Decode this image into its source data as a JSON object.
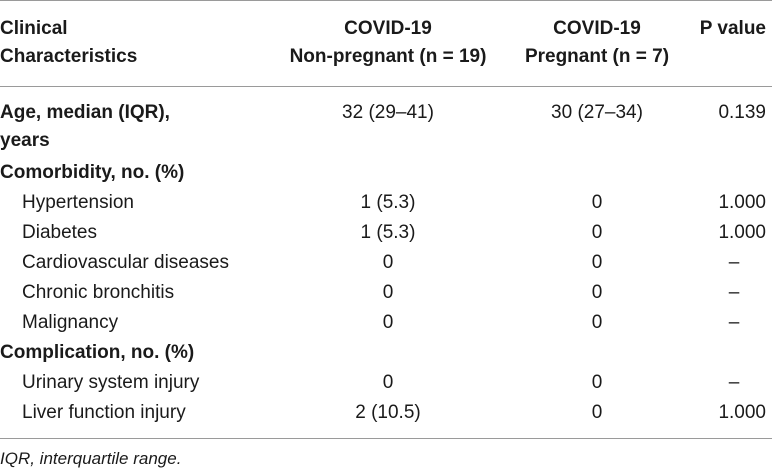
{
  "header": {
    "col1_line1": "Clinical",
    "col1_line2": "Characteristics",
    "col2_line1": "COVID-19",
    "col2_line2": "Non-pregnant (n = 19)",
    "col3_line1": "COVID-19",
    "col3_line2": "Pregnant (n = 7)",
    "col4": "P value"
  },
  "rows": [
    {
      "label_line1": "Age, median (IQR),",
      "label_line2": "years",
      "nonpregnant": "32 (29–41)",
      "pregnant": "30 (27–34)",
      "p": "0.139"
    },
    {
      "label": "Comorbidity, no. (%)"
    },
    {
      "label": "Hypertension",
      "nonpregnant": "1 (5.3)",
      "pregnant": "0",
      "p": "1.000"
    },
    {
      "label": "Diabetes",
      "nonpregnant": "1 (5.3)",
      "pregnant": "0",
      "p": "1.000"
    },
    {
      "label": "Cardiovascular diseases",
      "nonpregnant": "0",
      "pregnant": "0",
      "p": "–"
    },
    {
      "label": "Chronic bronchitis",
      "nonpregnant": "0",
      "pregnant": "0",
      "p": "–"
    },
    {
      "label": "Malignancy",
      "nonpregnant": "0",
      "pregnant": "0",
      "p": "–"
    },
    {
      "label": "Complication, no. (%)"
    },
    {
      "label": "Urinary system injury",
      "nonpregnant": "0",
      "pregnant": "0",
      "p": "–"
    },
    {
      "label": "Liver function injury",
      "nonpregnant": "2 (10.5)",
      "pregnant": "0",
      "p": "1.000"
    }
  ],
  "footnote": "IQR, interquartile range."
}
